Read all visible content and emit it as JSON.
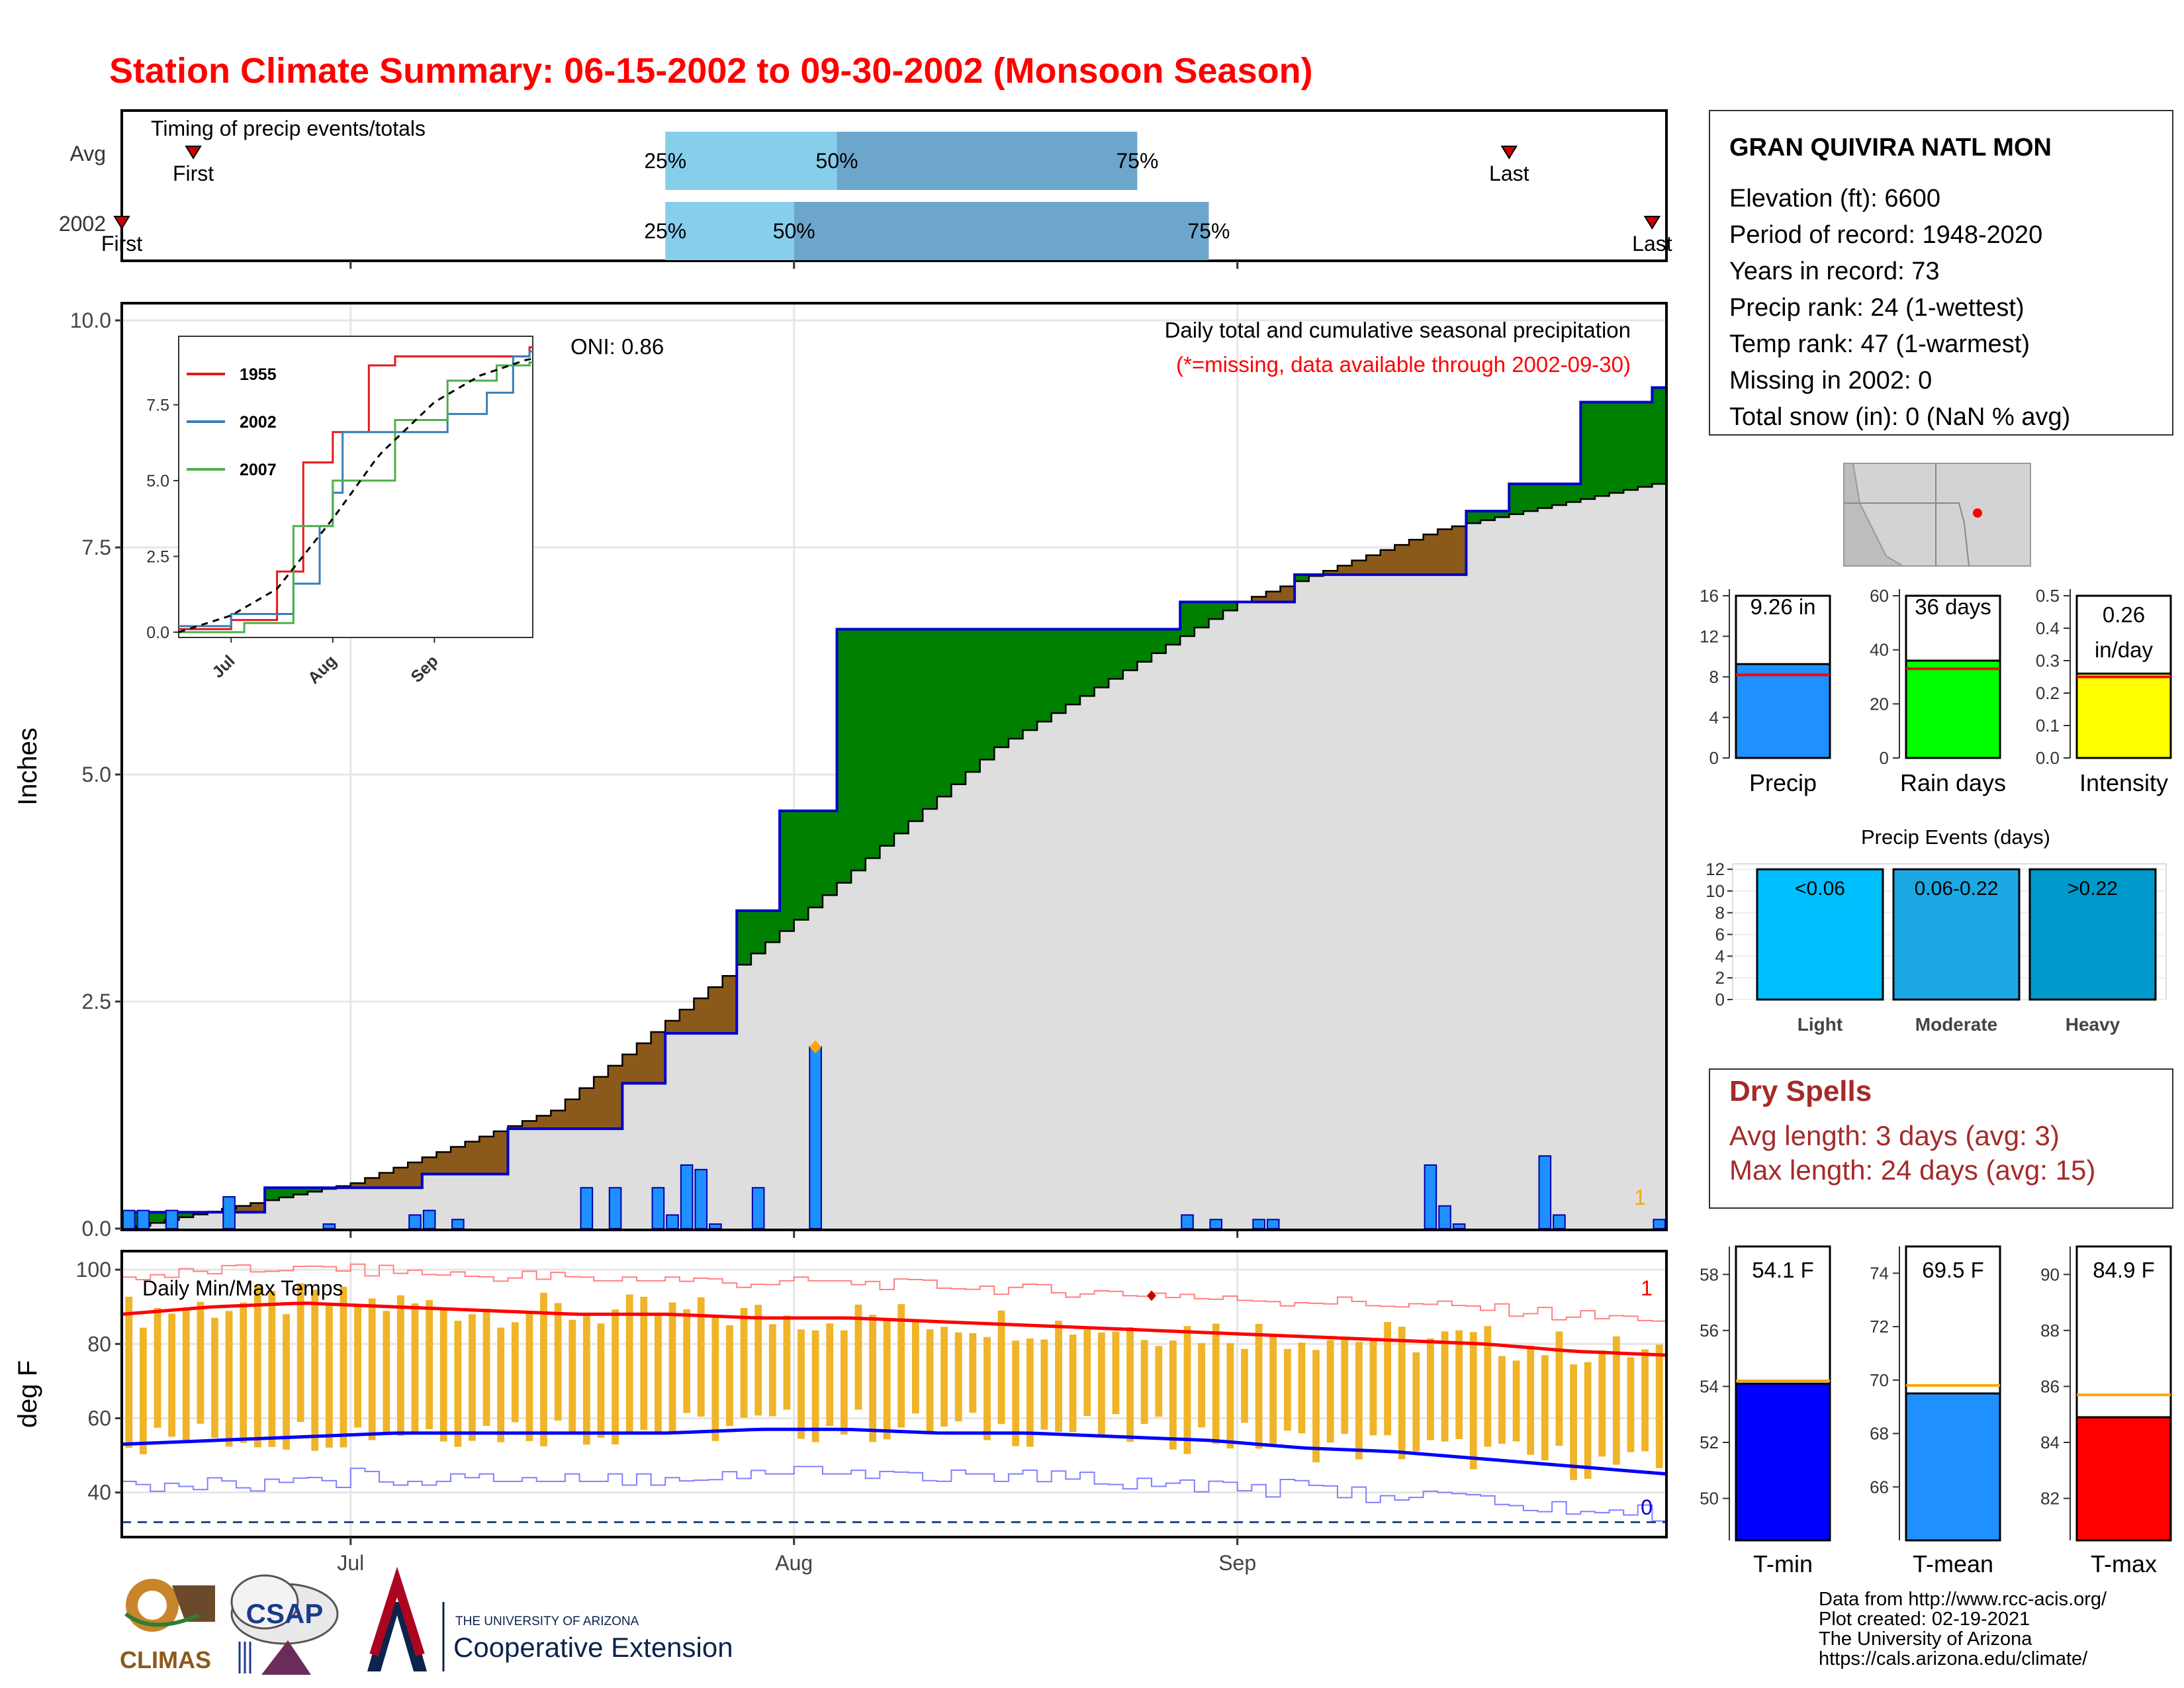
{
  "title": "Station Climate Summary: 06-15-2002 to 09-30-2002 (Monsoon Season)",
  "timing": {
    "label": "Timing of precip events/totals",
    "rows": [
      {
        "name": "Avg",
        "first_label": "First",
        "last_label": "Last",
        "first": "06-20",
        "last": "09-20",
        "q25": "07-23",
        "q50": "08-04",
        "q75": "08-25",
        "q25_label": "25%",
        "q50_label": "50%",
        "q75_label": "75%"
      },
      {
        "name": "2002",
        "first_label": "First",
        "last_label": "Last",
        "first": "06-15",
        "last": "09-30",
        "q25": "07-23",
        "q50": "08-01",
        "q75": "08-30",
        "q25_label": "25%",
        "q50_label": "50%",
        "q75_label": "75%"
      }
    ]
  },
  "main": {
    "ylabel": "Inches",
    "oni_label": "ONI: 0.86",
    "caption": "Daily total and cumulative seasonal precipitation",
    "missing_note": "(*=missing, data available through 2002-09-30)",
    "missing_count": "1",
    "yticks": [
      "0.0",
      "2.5",
      "5.0",
      "7.5",
      "10.0"
    ],
    "ylim": [
      0,
      10
    ],
    "colors": {
      "above": "#008000",
      "below": "#8B5A1A",
      "normal": "#DEDEDE",
      "obs_line": "#0000CC",
      "bars": "#1E90FF"
    }
  },
  "inset": {
    "yticks": [
      "0.0",
      "2.5",
      "5.0",
      "7.5"
    ],
    "xticks": [
      "Jul",
      "Aug",
      "Sep"
    ],
    "legend": [
      "1955",
      "2002",
      "2007"
    ],
    "colors": [
      "#E41A1C",
      "#377EB8",
      "#4DAF4A"
    ]
  },
  "temps": {
    "label": "Daily Min/Max Temps",
    "ylabel": "deg F",
    "yticks": [
      "40",
      "60",
      "80",
      "100"
    ],
    "count_high": "1",
    "count_low": "0"
  },
  "xticks": [
    "Jul",
    "Aug",
    "Sep"
  ],
  "station": {
    "name": "GRAN QUIVIRA NATL MON",
    "lines": [
      "Elevation (ft): 6600",
      "Period of record: 1948-2020",
      "Years in record: 73",
      "Precip rank: 24 (1-wettest)",
      "Temp rank: 47 (1-warmest)",
      "Missing in 2002: 0",
      "Total snow (in): 0 (NaN % avg)"
    ]
  },
  "mini": [
    {
      "name": "Precip",
      "value_label": "9.26 in",
      "value": 9.26,
      "avg": 8.2,
      "ymax": 16,
      "yticks": [
        "0",
        "4",
        "8",
        "12",
        "16"
      ],
      "color": "#1E90FF"
    },
    {
      "name": "Rain days",
      "value_label": "36 days",
      "value": 36,
      "avg": 33,
      "ymax": 60,
      "yticks": [
        "0",
        "20",
        "40",
        "60"
      ],
      "color": "#00FF00"
    },
    {
      "name": "Intensity",
      "value_label": "0.26",
      "value_label2": "in/day",
      "value": 0.26,
      "avg": 0.25,
      "ymax": 0.5,
      "yticks": [
        "0.0",
        "0.1",
        "0.2",
        "0.3",
        "0.4",
        "0.5"
      ],
      "color": "#FFFF00"
    }
  ],
  "events": {
    "title": "Precip Events (days)",
    "yticks": [
      "0",
      "2",
      "4",
      "6",
      "8",
      "10",
      "12"
    ],
    "bars": [
      {
        "name": "Light",
        "range": "<0.06",
        "color": "#00BFFF"
      },
      {
        "name": "Moderate",
        "range": "0.06-0.22",
        "color": "#1CA8E3"
      },
      {
        "name": "Heavy",
        "range": ">0.22",
        "color": "#0099CC"
      }
    ]
  },
  "dry": {
    "title": "Dry Spells",
    "lines": [
      "Avg length: 3 days (avg: 3)",
      "Max length: 24 days (avg: 15)"
    ]
  },
  "tbars": [
    {
      "name": "T-min",
      "label": "54.1 F",
      "value": 54.1,
      "avg": 54.2,
      "ymin": 48.5,
      "ymax": 59.0,
      "yticks": [
        "50",
        "52",
        "54",
        "56",
        "58"
      ],
      "color": "#0000FF"
    },
    {
      "name": "T-mean",
      "label": "69.5 F",
      "value": 69.5,
      "avg": 69.8,
      "ymin": 64.0,
      "ymax": 75.0,
      "yticks": [
        "66",
        "68",
        "70",
        "72",
        "74"
      ],
      "color": "#1E90FF"
    },
    {
      "name": "T-max",
      "label": "84.9 F",
      "value": 84.9,
      "avg": 85.7,
      "ymin": 80.5,
      "ymax": 91.0,
      "yticks": [
        "82",
        "84",
        "86",
        "88",
        "90"
      ],
      "color": "#FF0000"
    }
  ],
  "footer": {
    "lines": [
      "Data from http://www.rcc-acis.org/",
      "Plot created: 02-19-2021",
      "The University of Arizona",
      "https://cals.arizona.edu/climate/"
    ],
    "logo_climas": "CLIMAS",
    "logo_csap": "CSAP",
    "logo_ua_small": "THE UNIVERSITY OF ARIZONA",
    "logo_ua_big": "Cooperative Extension"
  },
  "chart_data": [
    {
      "type": "area",
      "title": "Daily total and cumulative seasonal precipitation",
      "ylabel": "Inches",
      "ylim": [
        0,
        10
      ],
      "x_start": "2002-06-15",
      "x_end": "2002-09-30",
      "series": [
        {
          "name": "Observed cumulative",
          "points": [
            [
              "06-15",
              0.18
            ],
            [
              "06-25",
              0.45
            ],
            [
              "07-06",
              0.6
            ],
            [
              "07-12",
              1.1
            ],
            [
              "07-20",
              1.6
            ],
            [
              "07-23",
              2.15
            ],
            [
              "07-28",
              3.5
            ],
            [
              "07-31",
              4.6
            ],
            [
              "08-04",
              6.6
            ],
            [
              "08-28",
              6.9
            ],
            [
              "09-05",
              7.2
            ],
            [
              "09-17",
              7.9
            ],
            [
              "09-20",
              8.2
            ],
            [
              "09-25",
              9.1
            ],
            [
              "09-30",
              9.26
            ]
          ]
        },
        {
          "name": "Average cumulative",
          "points": [
            [
              "06-15",
              0.0
            ],
            [
              "07-01",
              0.5
            ],
            [
              "07-15",
              1.3
            ],
            [
              "08-01",
              3.4
            ],
            [
              "08-15",
              5.3
            ],
            [
              "09-01",
              6.9
            ],
            [
              "09-15",
              7.7
            ],
            [
              "09-30",
              8.2
            ]
          ]
        },
        {
          "name": "Daily precip",
          "points": [
            [
              "06-15",
              0.2
            ],
            [
              "06-16",
              0.2
            ],
            [
              "06-18",
              0.2
            ],
            [
              "06-22",
              0.35
            ],
            [
              "06-29",
              0.05
            ],
            [
              "07-05",
              0.15
            ],
            [
              "07-06",
              0.2
            ],
            [
              "07-08",
              0.1
            ],
            [
              "07-17",
              0.45
            ],
            [
              "07-19",
              0.45
            ],
            [
              "07-22",
              0.45
            ],
            [
              "07-23",
              0.15
            ],
            [
              "07-24",
              0.7
            ],
            [
              "07-25",
              0.65
            ],
            [
              "07-26",
              0.05
            ],
            [
              "07-29",
              0.45
            ],
            [
              "08-02",
              2.0
            ],
            [
              "08-28",
              0.15
            ],
            [
              "08-30",
              0.1
            ],
            [
              "09-02",
              0.1
            ],
            [
              "09-03",
              0.1
            ],
            [
              "09-14",
              0.7
            ],
            [
              "09-15",
              0.25
            ],
            [
              "09-16",
              0.05
            ],
            [
              "09-22",
              0.8
            ],
            [
              "09-23",
              0.15
            ],
            [
              "09-30",
              0.1
            ]
          ]
        }
      ]
    },
    {
      "type": "line",
      "title": "",
      "ylim": [
        0,
        9.5
      ],
      "series": [
        {
          "name": "1955",
          "points": [
            [
              "06-15",
              0.1
            ],
            [
              "07-01",
              0.4
            ],
            [
              "07-15",
              2.0
            ],
            [
              "07-23",
              5.6
            ],
            [
              "08-01",
              6.6
            ],
            [
              "08-12",
              8.8
            ],
            [
              "08-20",
              9.1
            ],
            [
              "09-15",
              9.1
            ],
            [
              "09-30",
              9.4
            ]
          ]
        },
        {
          "name": "2002",
          "points": [
            [
              "06-15",
              0.2
            ],
            [
              "07-01",
              0.6
            ],
            [
              "07-20",
              1.6
            ],
            [
              "07-28",
              3.5
            ],
            [
              "08-01",
              4.6
            ],
            [
              "08-04",
              6.6
            ],
            [
              "09-05",
              7.2
            ],
            [
              "09-17",
              7.9
            ],
            [
              "09-25",
              9.1
            ],
            [
              "09-30",
              9.26
            ]
          ]
        },
        {
          "name": "2007",
          "points": [
            [
              "06-15",
              0.0
            ],
            [
              "07-05",
              0.3
            ],
            [
              "07-20",
              3.5
            ],
            [
              "08-01",
              5.0
            ],
            [
              "08-20",
              7.0
            ],
            [
              "09-05",
              8.3
            ],
            [
              "09-20",
              8.8
            ],
            [
              "09-30",
              8.9
            ]
          ]
        }
      ]
    },
    {
      "type": "bar",
      "title": "Daily Min/Max Temps",
      "ylabel": "deg F",
      "ylim": [
        28,
        105
      ],
      "series": [
        {
          "name": "Avg max",
          "values": [
            88,
            90,
            91,
            90,
            89,
            88,
            88,
            87,
            87,
            86,
            85,
            84,
            83,
            82,
            81,
            80,
            78,
            77
          ]
        },
        {
          "name": "Avg min",
          "values": [
            53,
            54,
            55,
            56,
            56,
            56,
            56,
            57,
            57,
            56,
            56,
            55,
            54,
            52,
            51,
            49,
            47,
            45
          ]
        }
      ]
    },
    {
      "type": "bar",
      "title": "Precip Events (days)",
      "categories": [
        "Light",
        "Moderate",
        "Heavy"
      ],
      "values": [
        12,
        12,
        12
      ]
    }
  ]
}
